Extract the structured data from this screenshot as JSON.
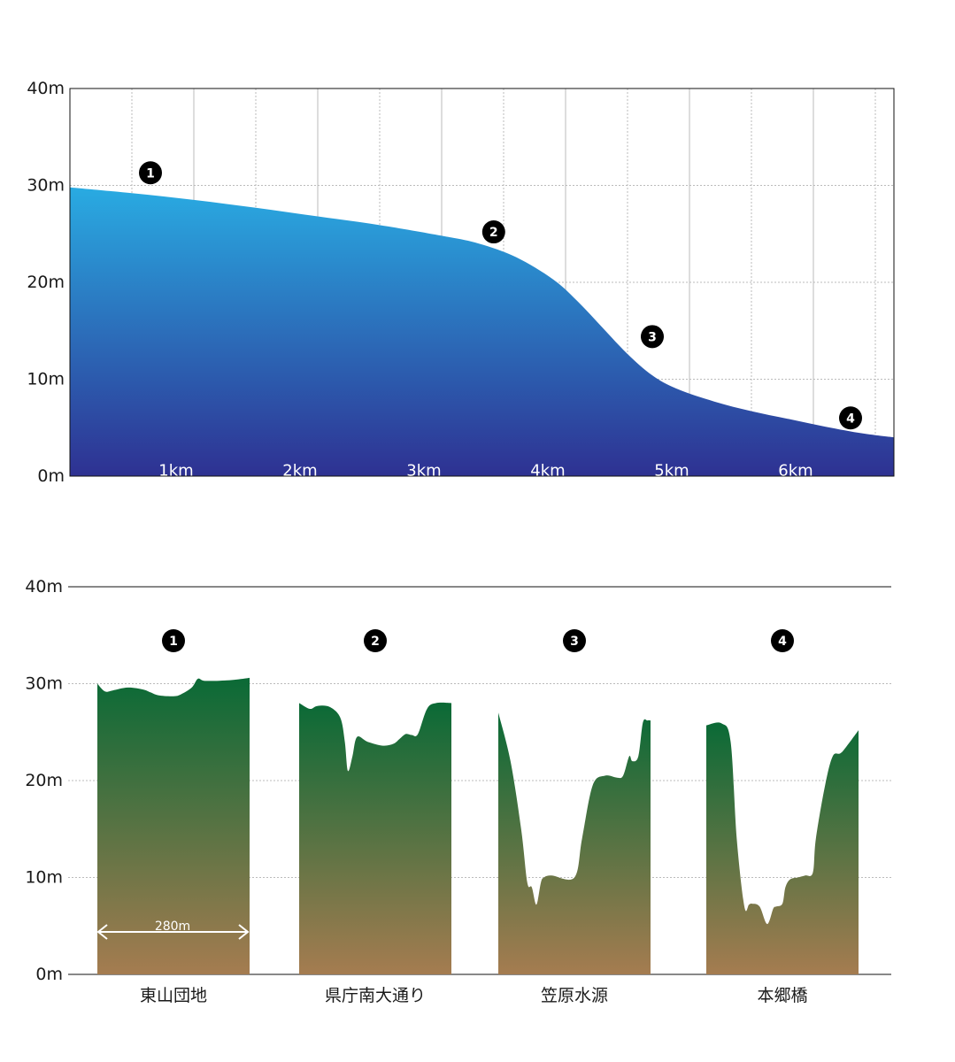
{
  "chart_data": [
    {
      "type": "area",
      "x_unit": "km",
      "y_ticks": [
        "0m",
        "10m",
        "20m",
        "30m",
        "40m"
      ],
      "x_tick_labels": [
        "1km",
        "2km",
        "3km",
        "4km",
        "5km",
        "6km"
      ],
      "ylim": [
        0,
        40
      ],
      "xlim": [
        0,
        6.65
      ],
      "grid": true,
      "colors": {
        "fill_top": "#29abe2",
        "fill_bottom": "#2e3192",
        "grid": "#bbbbbb",
        "marker": "#000000"
      },
      "x": [
        0,
        0.5,
        1,
        1.5,
        2,
        2.5,
        3,
        3.3,
        3.6,
        3.9,
        4.1,
        4.3,
        4.5,
        4.7,
        4.9,
        5.2,
        5.5,
        5.8,
        6.1,
        6.4,
        6.65
      ],
      "y": [
        29.8,
        29.2,
        28.5,
        27.7,
        26.8,
        25.9,
        24.8,
        24.0,
        22.6,
        20.3,
        18.0,
        15.3,
        12.6,
        10.4,
        9.0,
        7.7,
        6.7,
        5.9,
        5.1,
        4.4,
        4.0
      ],
      "markers": [
        {
          "label": "1",
          "x": 0.65,
          "y": 31.3
        },
        {
          "label": "2",
          "x": 3.42,
          "y": 25.2
        },
        {
          "label": "3",
          "x": 4.7,
          "y": 14.4
        },
        {
          "label": "4",
          "x": 6.3,
          "y": 6.0
        }
      ]
    },
    {
      "type": "area",
      "y_ticks": [
        "0m",
        "10m",
        "20m",
        "30m",
        "40m"
      ],
      "ylim": [
        0,
        40
      ],
      "grid": true,
      "colors": {
        "fill_top": "#0a6a36",
        "fill_bottom": "#a57c50",
        "grid": "#bbbbbb",
        "marker": "#000000"
      },
      "width_annotation": "280m",
      "panels": [
        {
          "marker": "1",
          "name": "東山団地",
          "x": [
            0,
            0.05,
            0.1,
            0.2,
            0.3,
            0.35,
            0.4,
            0.5,
            0.55,
            0.62,
            0.66,
            0.7,
            0.8,
            0.9,
            1
          ],
          "y": [
            30.0,
            29.2,
            29.3,
            29.6,
            29.4,
            29.1,
            28.8,
            28.7,
            28.9,
            29.6,
            30.5,
            30.3,
            30.3,
            30.4,
            30.6
          ]
        },
        {
          "marker": "2",
          "name": "県庁南大通り",
          "x": [
            0,
            0.07,
            0.12,
            0.2,
            0.27,
            0.3,
            0.32,
            0.35,
            0.38,
            0.45,
            0.55,
            0.62,
            0.66,
            0.7,
            0.74,
            0.78,
            0.84,
            0.9,
            1
          ],
          "y": [
            28.0,
            27.4,
            27.7,
            27.6,
            26.5,
            24.0,
            21.0,
            22.5,
            24.5,
            24.0,
            23.6,
            23.8,
            24.3,
            24.8,
            24.7,
            24.8,
            27.4,
            28.0,
            28.0
          ]
        },
        {
          "marker": "3",
          "name": "笠原水源",
          "x": [
            0,
            0.08,
            0.15,
            0.19,
            0.22,
            0.25,
            0.28,
            0.3,
            0.35,
            0.5,
            0.55,
            0.62,
            0.7,
            0.78,
            0.82,
            0.86,
            0.88,
            0.92,
            0.95,
            0.98,
            1
          ],
          "y": [
            27.0,
            22.0,
            15.0,
            9.5,
            9.0,
            7.2,
            9.5,
            10.0,
            10.2,
            10.0,
            14.0,
            19.5,
            20.5,
            20.3,
            20.5,
            22.5,
            22.0,
            22.5,
            26.0,
            26.2,
            26.2
          ]
        },
        {
          "marker": "4",
          "name": "本郷橋",
          "x": [
            0,
            0.1,
            0.16,
            0.2,
            0.25,
            0.28,
            0.3,
            0.35,
            0.4,
            0.44,
            0.46,
            0.5,
            0.52,
            0.55,
            0.6,
            0.65,
            0.7,
            0.72,
            0.78,
            0.83,
            0.88,
            0.92,
            1
          ],
          "y": [
            25.7,
            25.9,
            24.0,
            14.0,
            7.0,
            7.2,
            7.3,
            7.0,
            5.2,
            6.8,
            7.0,
            7.3,
            9.0,
            9.8,
            10.0,
            10.2,
            10.5,
            14.0,
            19.5,
            22.5,
            22.8,
            23.5,
            25.2
          ]
        }
      ]
    }
  ]
}
